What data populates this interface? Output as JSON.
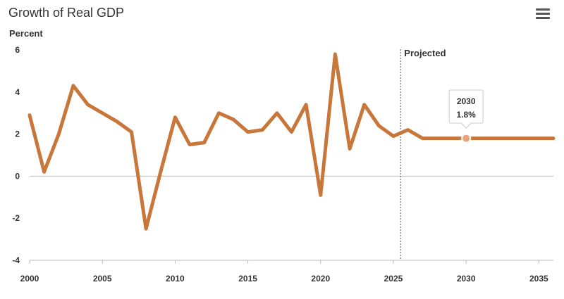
{
  "header": {
    "title": "Growth of Real GDP",
    "menu_icon": "hamburger-menu-icon"
  },
  "chart_data": {
    "type": "line",
    "title": "Growth of Real GDP",
    "ylabel": "Percent",
    "xlabel": "",
    "xlim": [
      2000,
      2036
    ],
    "ylim": [
      -4,
      6
    ],
    "y_ticks": [
      6,
      4,
      2,
      0,
      -2,
      -4
    ],
    "x_ticks": [
      2000,
      2005,
      2010,
      2015,
      2020,
      2025,
      2030,
      2035
    ],
    "projection_start": 2025.5,
    "projection_label": "Projected",
    "series": [
      {
        "name": "Growth of Real GDP",
        "color": "#c8763a",
        "x": [
          2000,
          2001,
          2002,
          2003,
          2004,
          2005,
          2006,
          2007,
          2008,
          2009,
          2010,
          2011,
          2012,
          2013,
          2014,
          2015,
          2016,
          2017,
          2018,
          2019,
          2020,
          2021,
          2022,
          2023,
          2024,
          2025,
          2026,
          2027,
          2028,
          2029,
          2030,
          2031,
          2032,
          2033,
          2034,
          2035,
          2036
        ],
        "values": [
          2.9,
          0.2,
          2.0,
          4.3,
          3.4,
          3.0,
          2.6,
          2.1,
          -2.5,
          0.2,
          2.8,
          1.5,
          1.6,
          3.0,
          2.7,
          2.1,
          2.2,
          3.0,
          2.1,
          3.4,
          -0.9,
          5.8,
          1.3,
          3.4,
          2.4,
          1.9,
          2.2,
          1.8,
          1.8,
          1.8,
          1.8,
          1.8,
          1.8,
          1.8,
          1.8,
          1.8,
          1.8
        ]
      }
    ],
    "tooltip": {
      "x": 2030,
      "year_label": "2030",
      "value_label": "1.8%"
    }
  }
}
